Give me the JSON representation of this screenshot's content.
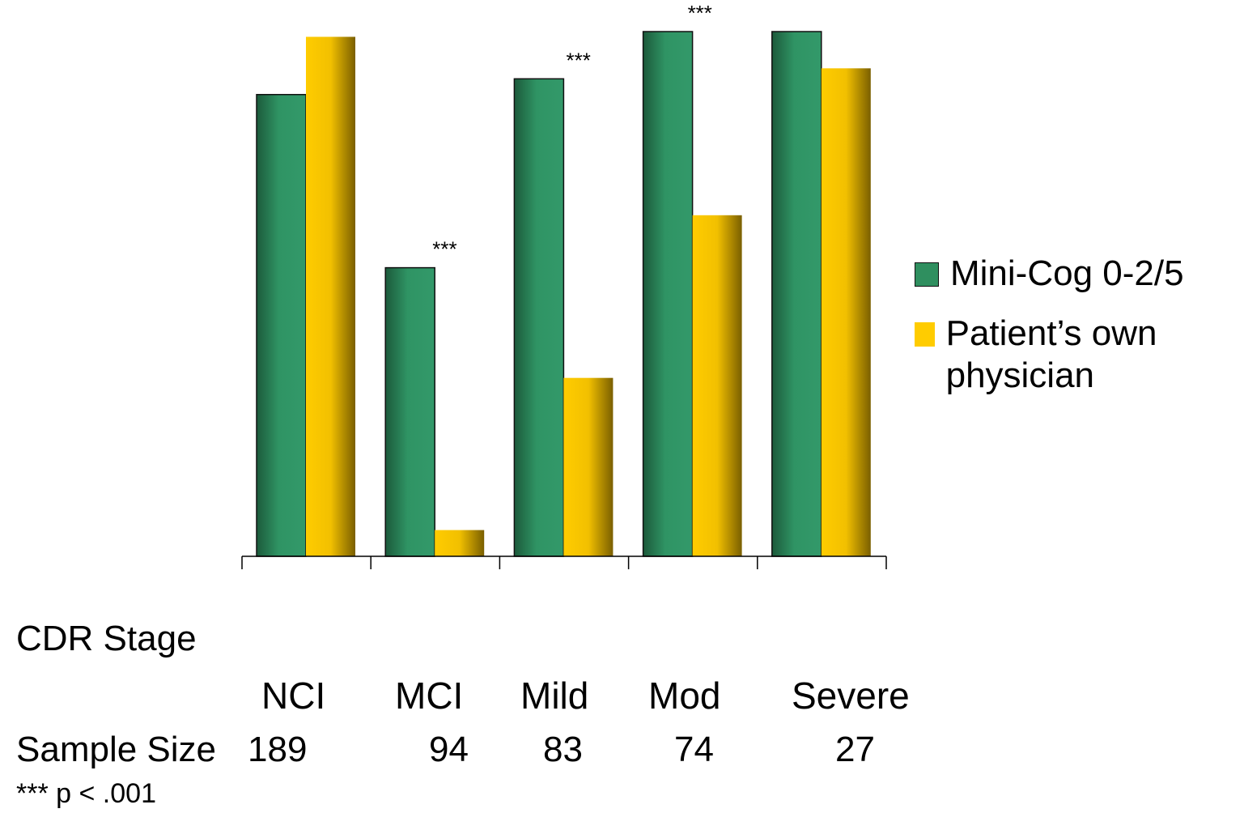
{
  "chart_data": {
    "type": "bar",
    "categories": [
      "NCI",
      "MCI",
      "Mild",
      "Mod",
      "Severe"
    ],
    "series": [
      {
        "name": "Mini-Cog 0-2/5",
        "values": [
          88,
          55,
          91,
          100,
          100
        ],
        "color": "#2f8f5f"
      },
      {
        "name": "Patient’s own physician",
        "values": [
          99,
          5,
          34,
          65,
          93
        ],
        "color": "#ffcc00"
      }
    ],
    "significance": [
      "",
      "***",
      "***",
      "***",
      ""
    ],
    "ylim": [
      0,
      100
    ],
    "grid": false,
    "legend_position": "right"
  },
  "legend": {
    "items": [
      {
        "label": "Mini-Cog 0-2/5"
      },
      {
        "label": "Patient’s own\nphysician"
      }
    ]
  },
  "table": {
    "stage_label": "CDR Stage",
    "sample_label": "Sample Size",
    "sample_sizes": [
      "189",
      "94",
      "83",
      "74",
      "27"
    ],
    "footnote": "*** p < .001"
  }
}
